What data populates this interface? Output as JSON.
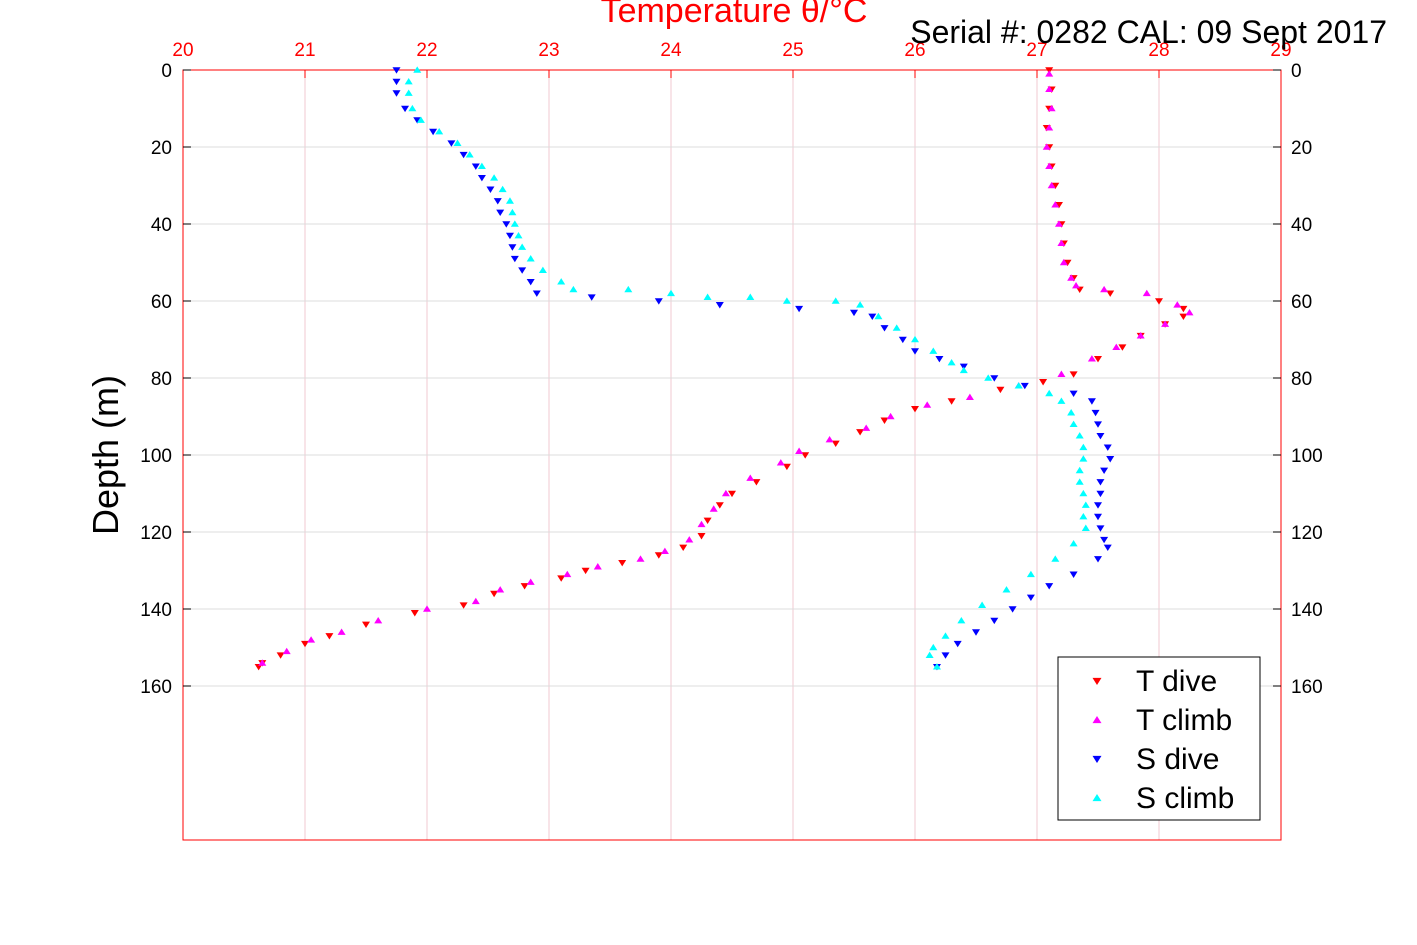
{
  "header": {
    "title": "Temperature θ/°C",
    "serial": "Serial #: 0282  CAL: 09 Sept 2017"
  },
  "colors": {
    "t_dive": "#ff0000",
    "t_climb": "#ff00ff",
    "s_dive": "#0000ff",
    "s_climb": "#00ffff",
    "axis_top": "#ff0000",
    "grid": "#d9d9d9"
  },
  "chart_data": {
    "type": "scatter",
    "title": "Temperature θ/°C",
    "xlabel": "",
    "ylabel": "Depth (m)",
    "xlim": [
      20,
      29
    ],
    "ylim": [
      0,
      200
    ],
    "y_reversed": true,
    "x_ticks": [
      "20",
      "21",
      "22",
      "23",
      "24",
      "25",
      "26",
      "27",
      "28",
      "29"
    ],
    "y_ticks": [
      "0",
      "20",
      "40",
      "60",
      "80",
      "100",
      "120",
      "140",
      "160"
    ],
    "grid": true,
    "legend_position": "bottom-right",
    "series": [
      {
        "name": "T dive",
        "marker": "triangle-down",
        "color": "#ff0000",
        "points": [
          [
            27.1,
            0
          ],
          [
            27.12,
            5
          ],
          [
            27.1,
            10
          ],
          [
            27.08,
            15
          ],
          [
            27.1,
            20
          ],
          [
            27.12,
            25
          ],
          [
            27.15,
            30
          ],
          [
            27.18,
            35
          ],
          [
            27.2,
            40
          ],
          [
            27.22,
            45
          ],
          [
            27.25,
            50
          ],
          [
            27.3,
            54
          ],
          [
            27.35,
            57
          ],
          [
            27.6,
            58
          ],
          [
            28.0,
            60
          ],
          [
            28.2,
            62
          ],
          [
            28.2,
            64
          ],
          [
            28.05,
            66
          ],
          [
            27.85,
            69
          ],
          [
            27.7,
            72
          ],
          [
            27.5,
            75
          ],
          [
            27.3,
            79
          ],
          [
            27.05,
            81
          ],
          [
            26.7,
            83
          ],
          [
            26.3,
            86
          ],
          [
            26.0,
            88
          ],
          [
            25.75,
            91
          ],
          [
            25.55,
            94
          ],
          [
            25.35,
            97
          ],
          [
            25.1,
            100
          ],
          [
            24.95,
            103
          ],
          [
            24.7,
            107
          ],
          [
            24.5,
            110
          ],
          [
            24.4,
            113
          ],
          [
            24.3,
            117
          ],
          [
            24.25,
            121
          ],
          [
            24.1,
            124
          ],
          [
            23.9,
            126
          ],
          [
            23.6,
            128
          ],
          [
            23.3,
            130
          ],
          [
            23.1,
            132
          ],
          [
            22.8,
            134
          ],
          [
            22.55,
            136
          ],
          [
            22.3,
            139
          ],
          [
            21.9,
            141
          ],
          [
            21.5,
            144
          ],
          [
            21.2,
            147
          ],
          [
            21.0,
            149
          ],
          [
            20.8,
            152
          ],
          [
            20.65,
            154
          ],
          [
            20.62,
            155
          ]
        ]
      },
      {
        "name": "T climb",
        "marker": "triangle-up",
        "color": "#ff00ff",
        "points": [
          [
            27.1,
            1
          ],
          [
            27.1,
            5
          ],
          [
            27.12,
            10
          ],
          [
            27.1,
            15
          ],
          [
            27.08,
            20
          ],
          [
            27.1,
            25
          ],
          [
            27.12,
            30
          ],
          [
            27.15,
            35
          ],
          [
            27.18,
            40
          ],
          [
            27.2,
            45
          ],
          [
            27.22,
            50
          ],
          [
            27.28,
            54
          ],
          [
            27.32,
            56
          ],
          [
            27.55,
            57
          ],
          [
            27.9,
            58
          ],
          [
            28.15,
            61
          ],
          [
            28.25,
            63
          ],
          [
            28.05,
            66
          ],
          [
            27.85,
            69
          ],
          [
            27.65,
            72
          ],
          [
            27.45,
            75
          ],
          [
            27.2,
            79
          ],
          [
            26.85,
            82
          ],
          [
            26.45,
            85
          ],
          [
            26.1,
            87
          ],
          [
            25.8,
            90
          ],
          [
            25.6,
            93
          ],
          [
            25.3,
            96
          ],
          [
            25.05,
            99
          ],
          [
            24.9,
            102
          ],
          [
            24.65,
            106
          ],
          [
            24.45,
            110
          ],
          [
            24.35,
            114
          ],
          [
            24.25,
            118
          ],
          [
            24.15,
            122
          ],
          [
            23.95,
            125
          ],
          [
            23.75,
            127
          ],
          [
            23.4,
            129
          ],
          [
            23.15,
            131
          ],
          [
            22.85,
            133
          ],
          [
            22.6,
            135
          ],
          [
            22.4,
            138
          ],
          [
            22.0,
            140
          ],
          [
            21.6,
            143
          ],
          [
            21.3,
            146
          ],
          [
            21.05,
            148
          ],
          [
            20.85,
            151
          ],
          [
            20.65,
            154
          ]
        ]
      },
      {
        "name": "S dive",
        "marker": "triangle-down",
        "color": "#0000ff",
        "points": [
          [
            21.75,
            0
          ],
          [
            21.75,
            3
          ],
          [
            21.75,
            6
          ],
          [
            21.82,
            10
          ],
          [
            21.92,
            13
          ],
          [
            22.05,
            16
          ],
          [
            22.2,
            19
          ],
          [
            22.3,
            22
          ],
          [
            22.4,
            25
          ],
          [
            22.45,
            28
          ],
          [
            22.52,
            31
          ],
          [
            22.58,
            34
          ],
          [
            22.6,
            37
          ],
          [
            22.65,
            40
          ],
          [
            22.68,
            43
          ],
          [
            22.7,
            46
          ],
          [
            22.72,
            49
          ],
          [
            22.78,
            52
          ],
          [
            22.85,
            55
          ],
          [
            22.9,
            58
          ],
          [
            23.35,
            59
          ],
          [
            23.9,
            60
          ],
          [
            24.4,
            61
          ],
          [
            25.05,
            62
          ],
          [
            25.5,
            63
          ],
          [
            25.65,
            64
          ],
          [
            25.75,
            67
          ],
          [
            25.9,
            70
          ],
          [
            26.0,
            73
          ],
          [
            26.2,
            75
          ],
          [
            26.4,
            77
          ],
          [
            26.65,
            80
          ],
          [
            26.9,
            82
          ],
          [
            27.3,
            84
          ],
          [
            27.45,
            86
          ],
          [
            27.48,
            89
          ],
          [
            27.5,
            92
          ],
          [
            27.52,
            95
          ],
          [
            27.58,
            98
          ],
          [
            27.6,
            101
          ],
          [
            27.55,
            104
          ],
          [
            27.52,
            107
          ],
          [
            27.52,
            110
          ],
          [
            27.5,
            113
          ],
          [
            27.5,
            116
          ],
          [
            27.52,
            119
          ],
          [
            27.55,
            122
          ],
          [
            27.58,
            124
          ],
          [
            27.5,
            127
          ],
          [
            27.3,
            131
          ],
          [
            27.1,
            134
          ],
          [
            26.95,
            137
          ],
          [
            26.8,
            140
          ],
          [
            26.65,
            143
          ],
          [
            26.5,
            146
          ],
          [
            26.35,
            149
          ],
          [
            26.25,
            152
          ],
          [
            26.18,
            155
          ]
        ]
      },
      {
        "name": "S climb",
        "marker": "triangle-up",
        "color": "#00ffff",
        "points": [
          [
            21.92,
            0
          ],
          [
            21.85,
            3
          ],
          [
            21.85,
            6
          ],
          [
            21.88,
            10
          ],
          [
            21.95,
            13
          ],
          [
            22.1,
            16
          ],
          [
            22.25,
            19
          ],
          [
            22.35,
            22
          ],
          [
            22.45,
            25
          ],
          [
            22.55,
            28
          ],
          [
            22.62,
            31
          ],
          [
            22.68,
            34
          ],
          [
            22.7,
            37
          ],
          [
            22.72,
            40
          ],
          [
            22.75,
            43
          ],
          [
            22.78,
            46
          ],
          [
            22.85,
            49
          ],
          [
            22.95,
            52
          ],
          [
            23.1,
            55
          ],
          [
            23.2,
            57
          ],
          [
            23.65,
            57
          ],
          [
            24.0,
            58
          ],
          [
            24.3,
            59
          ],
          [
            24.65,
            59
          ],
          [
            24.95,
            60
          ],
          [
            25.35,
            60
          ],
          [
            25.55,
            61
          ],
          [
            25.7,
            64
          ],
          [
            25.85,
            67
          ],
          [
            26.0,
            70
          ],
          [
            26.15,
            73
          ],
          [
            26.3,
            76
          ],
          [
            26.4,
            78
          ],
          [
            26.6,
            80
          ],
          [
            26.85,
            82
          ],
          [
            27.1,
            84
          ],
          [
            27.2,
            86
          ],
          [
            27.28,
            89
          ],
          [
            27.3,
            92
          ],
          [
            27.35,
            95
          ],
          [
            27.38,
            98
          ],
          [
            27.38,
            101
          ],
          [
            27.35,
            104
          ],
          [
            27.35,
            107
          ],
          [
            27.38,
            110
          ],
          [
            27.4,
            113
          ],
          [
            27.38,
            116
          ],
          [
            27.4,
            119
          ],
          [
            27.3,
            123
          ],
          [
            27.15,
            127
          ],
          [
            26.95,
            131
          ],
          [
            26.75,
            135
          ],
          [
            26.55,
            139
          ],
          [
            26.38,
            143
          ],
          [
            26.25,
            147
          ],
          [
            26.15,
            150
          ],
          [
            26.12,
            152
          ],
          [
            26.18,
            155
          ]
        ]
      }
    ]
  }
}
